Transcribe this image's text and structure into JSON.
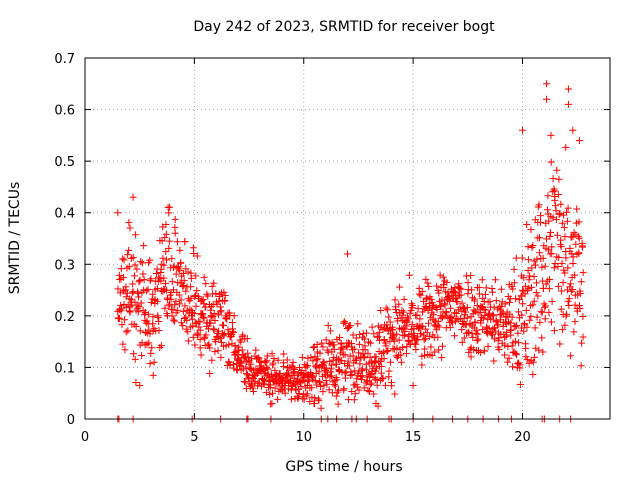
{
  "chart_data": {
    "type": "scatter",
    "title": "Day 242 of 2023, SRMTID for receiver bogt",
    "xlabel": "GPS time / hours",
    "ylabel": "SRMTID / TECUs",
    "xlim": [
      0,
      24
    ],
    "ylim": [
      0,
      0.7
    ],
    "x_ticks": [
      "0",
      "5",
      "10",
      "15",
      "20"
    ],
    "x_tick_values": [
      0,
      5,
      10,
      15,
      20
    ],
    "y_ticks": [
      "0",
      "0.1",
      "0.2",
      "0.3",
      "0.4",
      "0.5",
      "0.6",
      "0.7"
    ],
    "y_tick_values": [
      0,
      0.1,
      0.2,
      0.3,
      0.4,
      0.5,
      0.6,
      0.7
    ],
    "grid": true,
    "marker": "+",
    "color": "#ff0000",
    "trend": {
      "description": "approximate centre and spread of the scattered points",
      "x": [
        1.5,
        2.0,
        2.5,
        3.0,
        3.5,
        3.8,
        4.0,
        4.5,
        5.0,
        5.5,
        6.0,
        6.5,
        7.0,
        7.5,
        8.0,
        8.5,
        9.0,
        9.5,
        10.0,
        10.5,
        11.0,
        11.5,
        12.0,
        12.5,
        13.0,
        13.5,
        14.0,
        14.5,
        15.0,
        15.5,
        16.0,
        16.5,
        17.0,
        17.5,
        18.0,
        18.5,
        19.0,
        19.5,
        20.0,
        20.5,
        21.0,
        21.5,
        22.0,
        22.5,
        22.8
      ],
      "center": [
        0.22,
        0.25,
        0.22,
        0.2,
        0.25,
        0.3,
        0.27,
        0.24,
        0.21,
        0.2,
        0.2,
        0.17,
        0.13,
        0.1,
        0.09,
        0.08,
        0.085,
        0.08,
        0.075,
        0.08,
        0.11,
        0.1,
        0.12,
        0.12,
        0.11,
        0.13,
        0.16,
        0.17,
        0.17,
        0.18,
        0.2,
        0.21,
        0.22,
        0.21,
        0.2,
        0.2,
        0.18,
        0.18,
        0.2,
        0.25,
        0.3,
        0.35,
        0.33,
        0.3,
        0.28
      ],
      "spread": [
        0.06,
        0.08,
        0.06,
        0.06,
        0.08,
        0.08,
        0.07,
        0.06,
        0.05,
        0.05,
        0.05,
        0.04,
        0.03,
        0.03,
        0.025,
        0.025,
        0.03,
        0.03,
        0.03,
        0.04,
        0.04,
        0.04,
        0.05,
        0.04,
        0.04,
        0.05,
        0.05,
        0.05,
        0.05,
        0.05,
        0.05,
        0.05,
        0.05,
        0.05,
        0.05,
        0.05,
        0.05,
        0.06,
        0.09,
        0.1,
        0.12,
        0.12,
        0.12,
        0.1,
        0.09
      ]
    },
    "outliers": [
      {
        "x": 21.1,
        "y": 0.65
      },
      {
        "x": 21.1,
        "y": 0.62
      },
      {
        "x": 22.1,
        "y": 0.64
      },
      {
        "x": 22.1,
        "y": 0.61
      },
      {
        "x": 20.0,
        "y": 0.56
      },
      {
        "x": 21.3,
        "y": 0.55
      },
      {
        "x": 22.3,
        "y": 0.56
      },
      {
        "x": 22.6,
        "y": 0.54
      },
      {
        "x": 2.2,
        "y": 0.43
      },
      {
        "x": 3.8,
        "y": 0.41
      },
      {
        "x": 2.5,
        "y": 0.065
      },
      {
        "x": 13.3,
        "y": 0.03
      },
      {
        "x": 13.4,
        "y": 0.025
      },
      {
        "x": 12.0,
        "y": 0.32
      },
      {
        "x": 1.5,
        "y": 0.4
      }
    ],
    "zero_points_x": [
      1.5,
      1.55,
      2.2,
      4.9,
      6.2,
      7.4,
      7.45,
      8.5,
      10.8,
      11.1,
      11.5,
      12.2,
      12.4,
      12.9,
      13.9,
      14.0,
      15.0,
      15.9,
      16.8,
      17.5,
      18.2,
      18.9,
      19.5,
      20.9,
      21.0,
      21.7,
      22.2
    ]
  }
}
